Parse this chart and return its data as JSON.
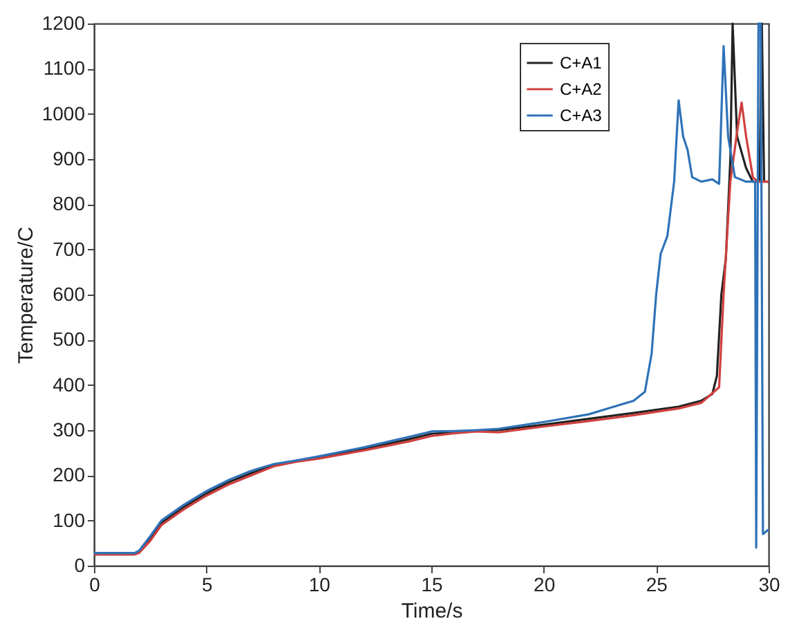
{
  "chart_data": {
    "type": "line",
    "xlabel": "Time/s",
    "ylabel": "Temperature/C",
    "xlim": [
      0,
      30
    ],
    "xticks": [
      0,
      5,
      10,
      15,
      20,
      25,
      30
    ],
    "ylim": [
      0,
      1200
    ],
    "yticks": [
      0,
      100,
      200,
      300,
      400,
      500,
      600,
      700,
      800,
      900,
      1000,
      1100,
      1200
    ],
    "grid": false,
    "legend": "top right",
    "line_style": "solid",
    "marker": "none",
    "series": [
      {
        "name": "C+A1",
        "color": "#222222",
        "x": [
          0,
          1.8,
          2,
          2.5,
          3,
          4,
          5,
          6,
          7,
          8,
          9,
          10,
          12,
          14,
          15,
          16,
          17,
          18,
          20,
          22,
          24,
          26,
          27,
          27.5,
          27.7,
          27.9,
          28.1,
          28.3,
          28.4,
          28.6,
          29,
          29.3,
          29.6,
          29.7,
          29.8,
          30
        ],
        "values": [
          25,
          25,
          30,
          60,
          95,
          130,
          160,
          185,
          205,
          222,
          232,
          240,
          258,
          280,
          292,
          295,
          298,
          300,
          312,
          325,
          338,
          352,
          365,
          380,
          420,
          600,
          680,
          900,
          1200,
          950,
          880,
          850,
          850,
          1200,
          850,
          850
        ]
      },
      {
        "name": "C+A2",
        "color": "#d0403f",
        "x": [
          0,
          1.8,
          2,
          2.5,
          3,
          4,
          5,
          6,
          7,
          8,
          9,
          10,
          12,
          14,
          15,
          16,
          17,
          18,
          20,
          22,
          24,
          26,
          27,
          27.8,
          28.0,
          28.3,
          28.6,
          28.8,
          29.0,
          29.3,
          29.5,
          30
        ],
        "values": [
          25,
          25,
          28,
          55,
          90,
          125,
          155,
          180,
          200,
          220,
          230,
          237,
          255,
          275,
          287,
          293,
          297,
          295,
          308,
          320,
          333,
          348,
          360,
          395,
          600,
          850,
          960,
          1025,
          950,
          860,
          850,
          850
        ]
      },
      {
        "name": "C+A3",
        "color": "#2f72b8",
        "x": [
          0,
          1.8,
          2,
          2.5,
          3,
          4,
          5,
          6,
          7,
          8,
          9,
          10,
          12,
          14,
          15,
          16,
          17,
          18,
          20,
          22,
          23,
          24,
          24.5,
          24.8,
          25.0,
          25.2,
          25.5,
          25.8,
          26.0,
          26.2,
          26.4,
          26.6,
          27,
          27.5,
          27.8,
          28.0,
          28.2,
          28.5,
          29,
          29.4,
          29.45,
          29.55,
          29.65,
          29.75,
          30
        ],
        "values": [
          28,
          28,
          33,
          65,
          100,
          135,
          165,
          190,
          210,
          225,
          233,
          242,
          262,
          285,
          297,
          298,
          300,
          303,
          318,
          335,
          350,
          365,
          385,
          470,
          600,
          690,
          730,
          850,
          1030,
          950,
          920,
          860,
          850,
          855,
          845,
          1150,
          950,
          860,
          850,
          850,
          40,
          1200,
          1200,
          70,
          80
        ]
      }
    ]
  }
}
